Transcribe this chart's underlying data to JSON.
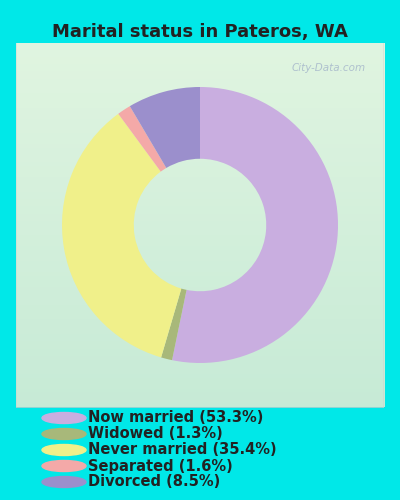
{
  "title": "Marital status in Pateros, WA",
  "categories": [
    "Now married",
    "Widowed",
    "Never married",
    "Separated",
    "Divorced"
  ],
  "values": [
    53.3,
    1.3,
    35.4,
    1.6,
    8.5
  ],
  "colors": [
    "#c9aee0",
    "#a8b87a",
    "#f0f08a",
    "#f4a9a8",
    "#9b8fcc"
  ],
  "legend_labels": [
    "Now married (53.3%)",
    "Widowed (1.3%)",
    "Never married (35.4%)",
    "Separated (1.6%)",
    "Divorced (8.5%)"
  ],
  "bg_outer": "#00e8e8",
  "bg_inner_top": "#d6ecd6",
  "bg_inner_bottom": "#f0f8f0",
  "title_fontsize": 13,
  "legend_fontsize": 10.5,
  "watermark": "City-Data.com"
}
